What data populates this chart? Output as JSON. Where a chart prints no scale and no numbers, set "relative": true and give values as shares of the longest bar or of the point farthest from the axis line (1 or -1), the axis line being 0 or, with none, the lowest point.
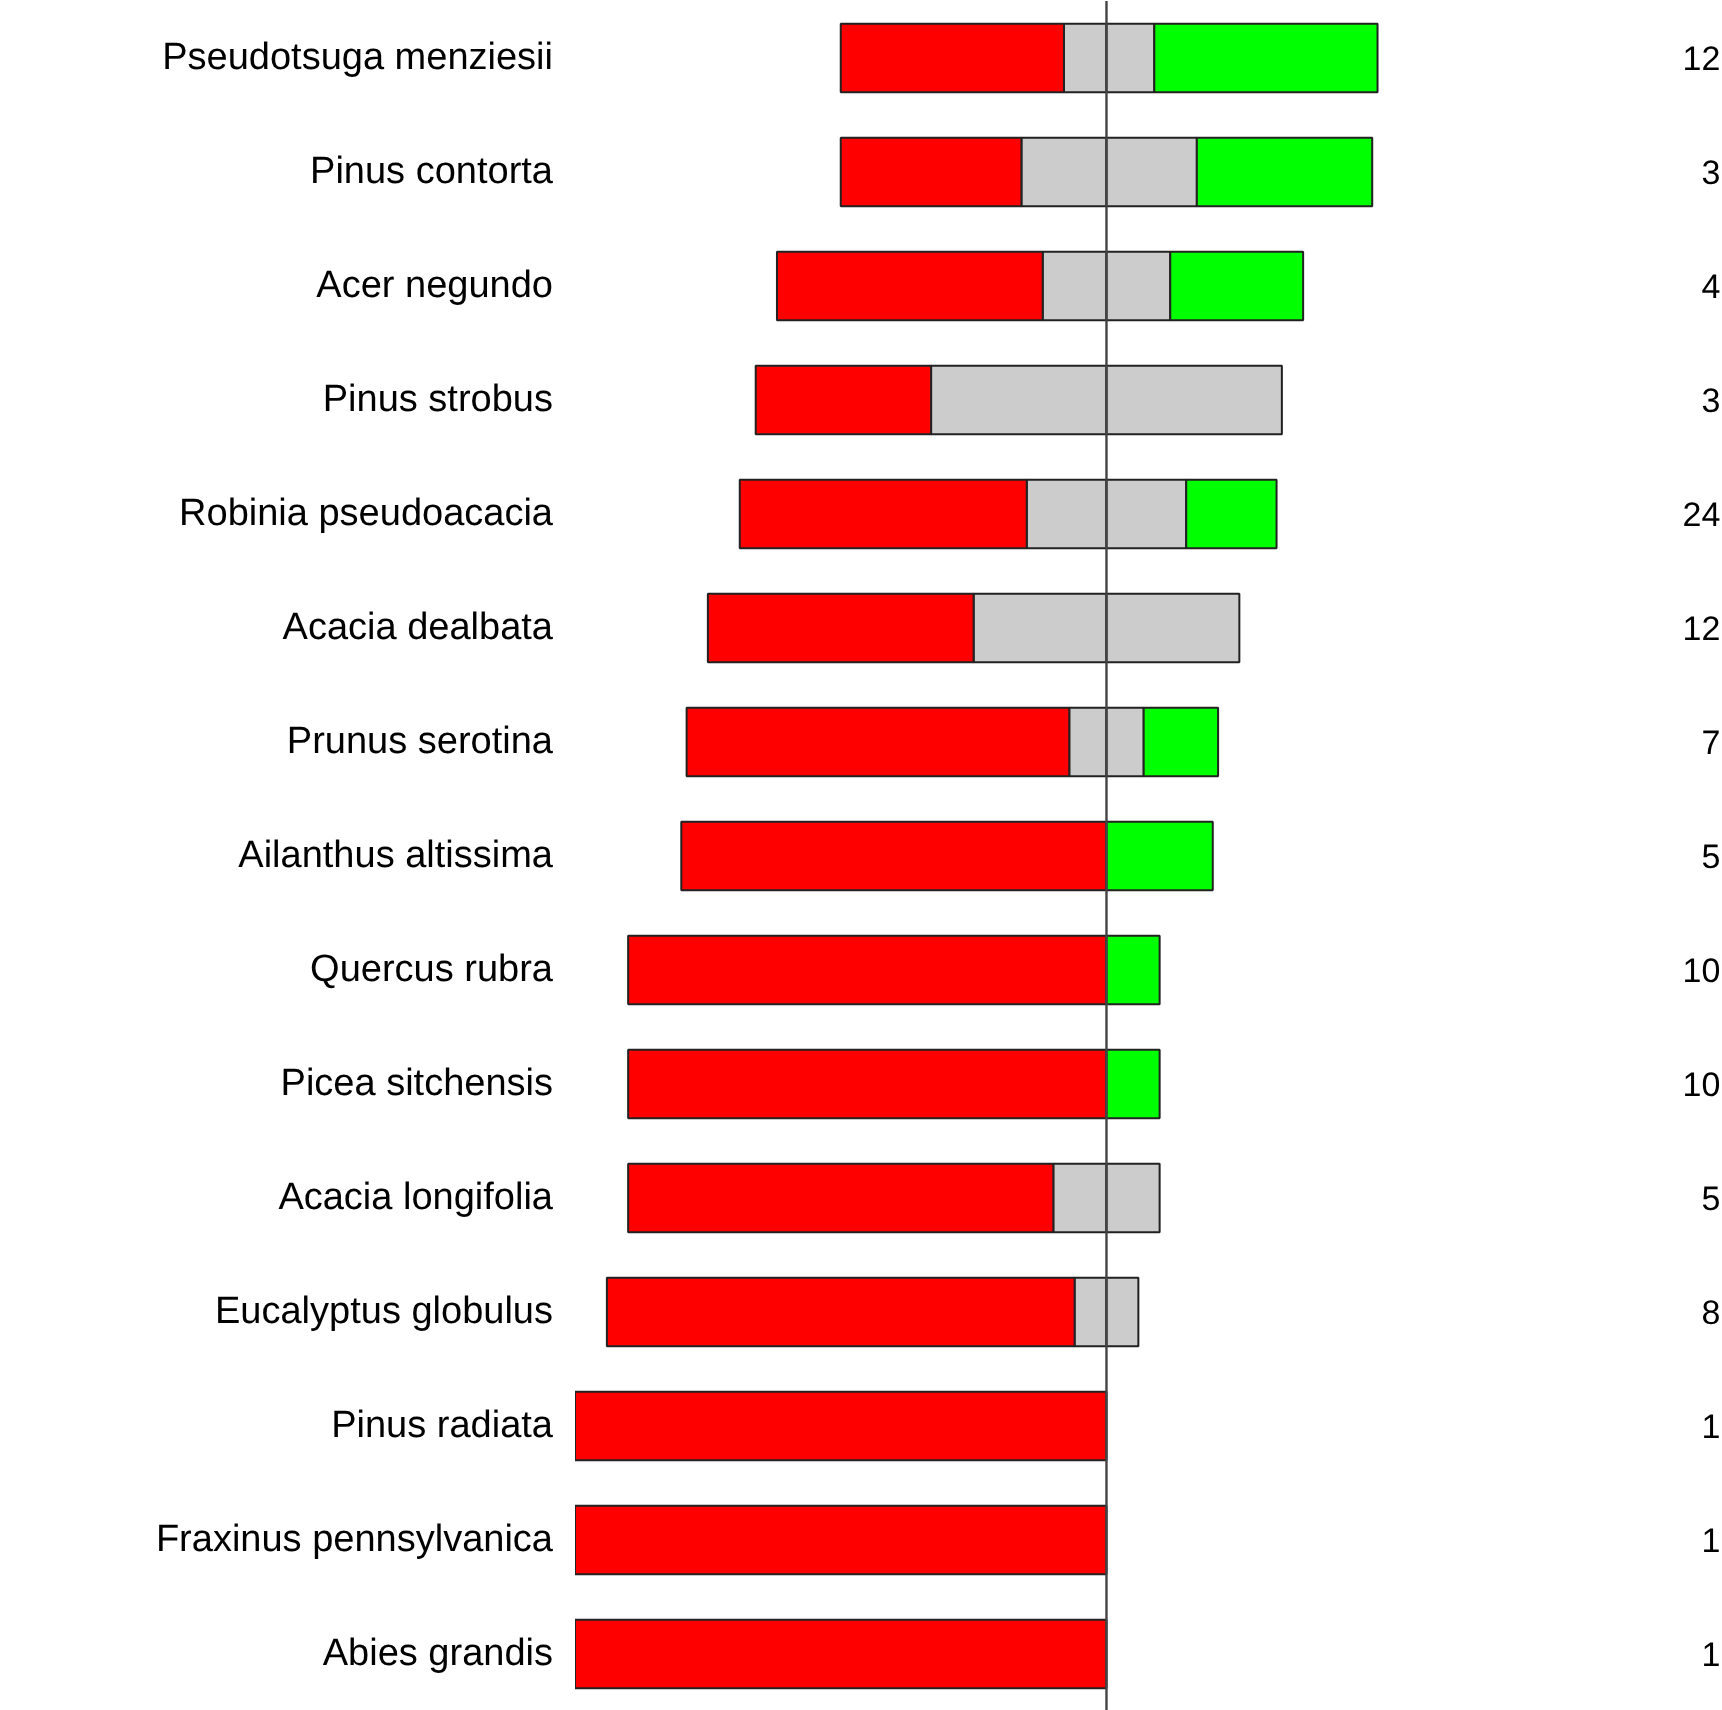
{
  "chart_data": {
    "type": "bar",
    "orientation": "horizontal",
    "stacked": true,
    "relative": true,
    "grid": false,
    "categories": [
      "Pseudotsuga menziesii",
      "Pinus contorta",
      "Acer negundo",
      "Pinus strobus",
      "Robinia pseudoacacia",
      "Acacia dealbata",
      "Prunus serotina",
      "Ailanthus altissima",
      "Quercus rubra",
      "Picea sitchensis",
      "Acacia longifolia",
      "Eucalyptus globulus",
      "Pinus radiata",
      "Fraxinus pennsylvanica",
      "Abies grandis"
    ],
    "series": [
      {
        "color": "#cccccc",
        "values": [
          -0.08,
          -0.16,
          -0.12,
          -0.33,
          -0.15,
          -0.25,
          -0.07,
          null,
          null,
          null,
          -0.1,
          -0.06,
          null,
          null,
          null
        ]
      },
      {
        "color": "#ff0000",
        "values": [
          -0.42,
          -0.34,
          -0.5,
          -0.33,
          -0.54,
          -0.5,
          -0.72,
          -0.8,
          -0.9,
          -0.9,
          -0.8,
          -0.88,
          -1,
          -1,
          -1
        ]
      },
      {
        "color": "#cccccc",
        "values": [
          0.09,
          0.17,
          0.12,
          0.33,
          0.15,
          0.25,
          0.07,
          null,
          null,
          null,
          0.1,
          0.06,
          null,
          null,
          null
        ]
      },
      {
        "color": "#00ff00",
        "values": [
          0.42,
          0.33,
          0.25,
          null,
          0.17,
          null,
          0.14,
          0.2,
          0.1,
          0.1,
          null,
          null,
          null,
          null,
          null
        ]
      }
    ],
    "annotations": [
      "12",
      "3",
      "4",
      "3",
      "24",
      "12",
      "7",
      "5",
      "10",
      "10",
      "5",
      "8",
      "1",
      "1",
      "1"
    ]
  }
}
